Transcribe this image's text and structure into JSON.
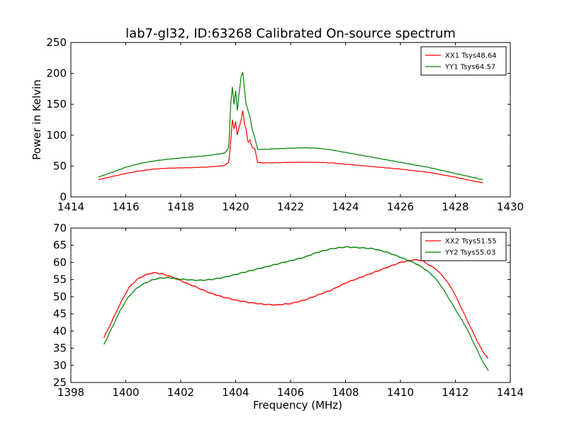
{
  "title": "lab7-gl32, ID:63268 Calibrated On-source spectrum",
  "chart_data": [
    {
      "type": "line",
      "ylabel": "Power in Kelvin",
      "xlabel": "",
      "xlim": [
        1414,
        1430
      ],
      "ylim": [
        0,
        250
      ],
      "xticks": [
        1414,
        1416,
        1418,
        1420,
        1422,
        1424,
        1426,
        1428,
        1430
      ],
      "yticks": [
        0,
        50,
        100,
        150,
        200,
        250
      ],
      "legend_position": "top-right",
      "series": [
        {
          "name": "XX1 Tsys48.64",
          "color": "#ff0000",
          "x": [
            1415.0,
            1415.5,
            1416.0,
            1416.5,
            1417.0,
            1417.5,
            1418.0,
            1418.5,
            1419.0,
            1419.3,
            1419.6,
            1419.75,
            1419.82,
            1419.88,
            1419.94,
            1420.0,
            1420.06,
            1420.12,
            1420.2,
            1420.26,
            1420.32,
            1420.38,
            1420.45,
            1420.52,
            1420.6,
            1420.7,
            1420.8,
            1421.0,
            1421.5,
            1422.0,
            1422.5,
            1423.0,
            1423.5,
            1424.0,
            1424.5,
            1425.0,
            1425.5,
            1426.0,
            1426.5,
            1427.0,
            1427.5,
            1428.0,
            1428.5,
            1429.0
          ],
          "y": [
            28,
            33,
            38,
            42,
            45,
            46.5,
            47,
            47.5,
            48.5,
            49.5,
            51,
            56,
            90,
            125,
            110,
            122,
            100,
            112,
            125,
            140,
            118,
            110,
            88,
            92,
            80,
            78,
            56,
            55,
            55.5,
            56,
            56.2,
            56,
            55,
            53,
            51,
            49,
            47,
            45,
            42.5,
            40,
            36,
            32,
            27,
            23
          ]
        },
        {
          "name": "YY1 Tsys64.57",
          "color": "#008000",
          "x": [
            1415.0,
            1415.5,
            1416.0,
            1416.5,
            1417.0,
            1417.5,
            1418.0,
            1418.5,
            1419.0,
            1419.3,
            1419.6,
            1419.75,
            1419.82,
            1419.88,
            1419.94,
            1420.0,
            1420.06,
            1420.12,
            1420.2,
            1420.26,
            1420.32,
            1420.38,
            1420.45,
            1420.52,
            1420.6,
            1420.7,
            1420.8,
            1421.0,
            1421.5,
            1422.0,
            1422.5,
            1423.0,
            1423.5,
            1424.0,
            1424.5,
            1425.0,
            1425.5,
            1426.0,
            1426.5,
            1427.0,
            1427.5,
            1428.0,
            1428.5,
            1429.0
          ],
          "y": [
            32,
            40,
            48,
            54,
            58,
            61,
            63,
            65,
            67,
            69,
            71,
            80,
            150,
            178,
            150,
            172,
            140,
            165,
            195,
            202,
            175,
            150,
            140,
            130,
            110,
            95,
            77,
            77,
            78,
            79,
            79.5,
            79,
            76,
            72,
            68,
            64,
            60,
            56,
            52,
            48,
            43,
            38,
            33,
            28
          ]
        }
      ]
    },
    {
      "type": "line",
      "ylabel": "",
      "xlabel": "Frequency (MHz)",
      "xlim": [
        1398,
        1414
      ],
      "ylim": [
        25,
        70
      ],
      "xticks": [
        1398,
        1400,
        1402,
        1404,
        1406,
        1408,
        1410,
        1412,
        1414
      ],
      "yticks": [
        25,
        30,
        35,
        40,
        45,
        50,
        55,
        60,
        65,
        70
      ],
      "legend_position": "top-right",
      "series": [
        {
          "name": "XX2 Tsys51.55",
          "color": "#ff0000",
          "x": [
            1399.2,
            1399.5,
            1399.8,
            1400.1,
            1400.4,
            1400.7,
            1401.0,
            1401.3,
            1401.6,
            1401.9,
            1402.2,
            1402.5,
            1402.8,
            1403.1,
            1403.5,
            1404.0,
            1404.5,
            1405.0,
            1405.5,
            1406.0,
            1406.5,
            1407.0,
            1407.5,
            1408.0,
            1408.5,
            1409.0,
            1409.5,
            1410.0,
            1410.5,
            1410.8,
            1411.0,
            1411.3,
            1411.6,
            1411.9,
            1412.2,
            1412.5,
            1412.8,
            1413.0,
            1413.2
          ],
          "y": [
            38,
            43,
            48,
            52.5,
            55,
            56.3,
            57,
            56.7,
            56,
            55,
            54,
            53,
            52,
            51,
            50,
            49,
            48.3,
            47.8,
            47.6,
            48,
            49,
            50.5,
            52,
            54,
            55.5,
            57,
            58.5,
            60,
            60.8,
            60.5,
            59.5,
            58,
            55.5,
            52,
            47,
            42,
            37,
            34,
            32
          ]
        },
        {
          "name": "YY2 Tsys55.03",
          "color": "#008000",
          "x": [
            1399.2,
            1399.5,
            1399.8,
            1400.1,
            1400.4,
            1400.7,
            1401.0,
            1401.3,
            1401.6,
            1401.9,
            1402.2,
            1402.5,
            1402.8,
            1403.1,
            1403.5,
            1404.0,
            1404.5,
            1405.0,
            1405.5,
            1406.0,
            1406.5,
            1407.0,
            1407.5,
            1408.0,
            1408.5,
            1409.0,
            1409.5,
            1410.0,
            1410.3,
            1410.6,
            1410.9,
            1411.2,
            1411.5,
            1411.8,
            1412.1,
            1412.4,
            1412.7,
            1413.0,
            1413.2
          ],
          "y": [
            36,
            41,
            46,
            50,
            52.5,
            54,
            55,
            55.5,
            55.5,
            55.2,
            55,
            54.8,
            54.8,
            55,
            55.5,
            56.5,
            57.5,
            58.5,
            59.5,
            60.5,
            61.5,
            63,
            64,
            64.5,
            64.3,
            64,
            63,
            61.5,
            60.5,
            59.5,
            58,
            56,
            53,
            49,
            45,
            41,
            36,
            31,
            28.5
          ]
        }
      ]
    }
  ]
}
